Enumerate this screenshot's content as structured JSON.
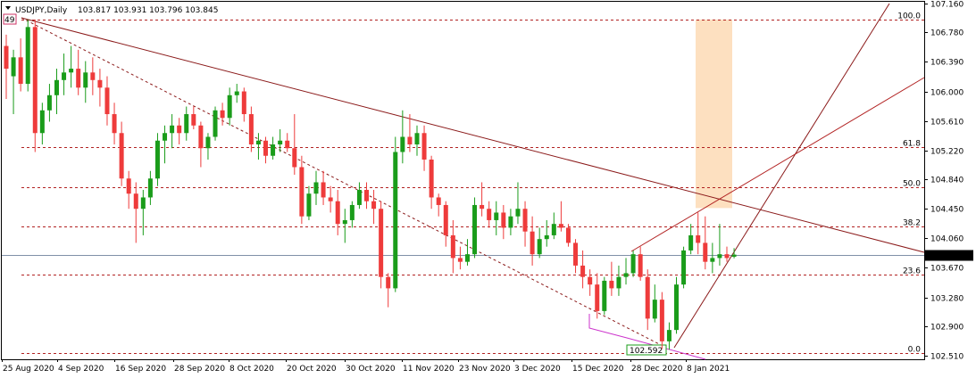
{
  "header": {
    "menu_icon": "triangle-down-icon",
    "symbol": "USDJPY,Daily",
    "ohlc": "103.817 103.931 103.796 103.845"
  },
  "marker": {
    "text": "49"
  },
  "current_price": "103.845",
  "low_label": "102.592",
  "colors": {
    "bull": "#1a9c1a",
    "bear": "#ee3b3b",
    "trend": "#8b1a1a",
    "fib": "#b22222",
    "zone": "#fde0c0",
    "price_line": "#8090a8",
    "lower_trend": "#cc33cc"
  },
  "chart_data": {
    "type": "candlestick",
    "y_ticks": [
      "107.160",
      "106.780",
      "106.390",
      "106.000",
      "105.610",
      "105.220",
      "104.840",
      "104.450",
      "104.060",
      "103.670",
      "103.280",
      "102.900",
      "102.510"
    ],
    "x_ticks": [
      "25 Aug 2020",
      "4 Sep 2020",
      "16 Sep 2020",
      "28 Sep 2020",
      "8 Oct 2020",
      "20 Oct 2020",
      "30 Oct 2020",
      "11 Nov 2020",
      "23 Nov 2020",
      "3 Dec 2020",
      "15 Dec 2020",
      "28 Dec 2020",
      "8 Jan 2021"
    ],
    "ylim": [
      102.51,
      107.16
    ],
    "fib_levels": [
      {
        "label": "100.0",
        "price": 106.95
      },
      {
        "label": "61.8",
        "price": 105.26
      },
      {
        "label": "50.0",
        "price": 104.74
      },
      {
        "label": "38.2",
        "price": 104.22
      },
      {
        "label": "23.6",
        "price": 103.58
      },
      {
        "label": "0.0",
        "price": 102.55
      }
    ],
    "candles": [
      {
        "o": 106.6,
        "h": 106.75,
        "l": 105.9,
        "c": 106.3
      },
      {
        "o": 106.2,
        "h": 106.55,
        "l": 105.7,
        "c": 106.45
      },
      {
        "o": 106.45,
        "h": 106.7,
        "l": 106.0,
        "c": 106.1
      },
      {
        "o": 106.1,
        "h": 106.95,
        "l": 106.0,
        "c": 106.85
      },
      {
        "o": 106.85,
        "h": 106.95,
        "l": 105.2,
        "c": 105.45
      },
      {
        "o": 105.45,
        "h": 105.85,
        "l": 105.3,
        "c": 105.75
      },
      {
        "o": 105.75,
        "h": 106.1,
        "l": 105.6,
        "c": 105.95
      },
      {
        "o": 105.95,
        "h": 106.3,
        "l": 105.7,
        "c": 106.15
      },
      {
        "o": 106.15,
        "h": 106.5,
        "l": 105.95,
        "c": 106.25
      },
      {
        "o": 106.25,
        "h": 106.6,
        "l": 106.05,
        "c": 106.3
      },
      {
        "o": 106.3,
        "h": 106.55,
        "l": 105.95,
        "c": 106.05
      },
      {
        "o": 106.05,
        "h": 106.4,
        "l": 105.85,
        "c": 106.25
      },
      {
        "o": 106.25,
        "h": 106.45,
        "l": 105.95,
        "c": 106.15
      },
      {
        "o": 106.15,
        "h": 106.3,
        "l": 105.8,
        "c": 106.05
      },
      {
        "o": 106.05,
        "h": 106.2,
        "l": 105.55,
        "c": 105.7
      },
      {
        "o": 105.7,
        "h": 105.85,
        "l": 105.3,
        "c": 105.45
      },
      {
        "o": 105.45,
        "h": 105.6,
        "l": 104.75,
        "c": 104.85
      },
      {
        "o": 104.85,
        "h": 104.95,
        "l": 104.45,
        "c": 104.65
      },
      {
        "o": 104.65,
        "h": 104.8,
        "l": 104.0,
        "c": 104.45
      },
      {
        "o": 104.45,
        "h": 104.7,
        "l": 104.1,
        "c": 104.6
      },
      {
        "o": 104.6,
        "h": 104.95,
        "l": 104.5,
        "c": 104.85
      },
      {
        "o": 104.85,
        "h": 105.45,
        "l": 104.75,
        "c": 105.35
      },
      {
        "o": 105.35,
        "h": 105.55,
        "l": 105.05,
        "c": 105.45
      },
      {
        "o": 105.45,
        "h": 105.7,
        "l": 105.25,
        "c": 105.55
      },
      {
        "o": 105.55,
        "h": 105.65,
        "l": 105.3,
        "c": 105.45
      },
      {
        "o": 105.45,
        "h": 105.8,
        "l": 105.35,
        "c": 105.7
      },
      {
        "o": 105.7,
        "h": 105.8,
        "l": 105.5,
        "c": 105.55
      },
      {
        "o": 105.55,
        "h": 105.6,
        "l": 105.0,
        "c": 105.25
      },
      {
        "o": 105.25,
        "h": 105.45,
        "l": 105.1,
        "c": 105.4
      },
      {
        "o": 105.4,
        "h": 105.8,
        "l": 105.35,
        "c": 105.75
      },
      {
        "o": 105.75,
        "h": 105.85,
        "l": 105.55,
        "c": 105.65
      },
      {
        "o": 105.65,
        "h": 106.05,
        "l": 105.55,
        "c": 105.95
      },
      {
        "o": 105.95,
        "h": 106.1,
        "l": 105.85,
        "c": 106.0
      },
      {
        "o": 106.0,
        "h": 106.05,
        "l": 105.6,
        "c": 105.7
      },
      {
        "o": 105.7,
        "h": 105.8,
        "l": 105.2,
        "c": 105.3
      },
      {
        "o": 105.3,
        "h": 105.45,
        "l": 105.1,
        "c": 105.35
      },
      {
        "o": 105.35,
        "h": 105.4,
        "l": 105.05,
        "c": 105.15
      },
      {
        "o": 105.15,
        "h": 105.4,
        "l": 105.1,
        "c": 105.3
      },
      {
        "o": 105.3,
        "h": 105.5,
        "l": 105.2,
        "c": 105.35
      },
      {
        "o": 105.35,
        "h": 105.45,
        "l": 105.2,
        "c": 105.25
      },
      {
        "o": 105.25,
        "h": 105.7,
        "l": 104.9,
        "c": 105.0
      },
      {
        "o": 105.0,
        "h": 105.15,
        "l": 104.25,
        "c": 104.35
      },
      {
        "o": 104.35,
        "h": 104.75,
        "l": 104.3,
        "c": 104.65
      },
      {
        "o": 104.65,
        "h": 104.95,
        "l": 104.5,
        "c": 104.8
      },
      {
        "o": 104.8,
        "h": 104.95,
        "l": 104.5,
        "c": 104.6
      },
      {
        "o": 104.6,
        "h": 104.75,
        "l": 104.4,
        "c": 104.55
      },
      {
        "o": 104.55,
        "h": 104.7,
        "l": 104.1,
        "c": 104.25
      },
      {
        "o": 104.25,
        "h": 104.45,
        "l": 104.0,
        "c": 104.3
      },
      {
        "o": 104.3,
        "h": 104.55,
        "l": 104.2,
        "c": 104.5
      },
      {
        "o": 104.5,
        "h": 104.8,
        "l": 104.45,
        "c": 104.7
      },
      {
        "o": 104.7,
        "h": 104.8,
        "l": 104.45,
        "c": 104.55
      },
      {
        "o": 104.55,
        "h": 104.7,
        "l": 104.25,
        "c": 104.45
      },
      {
        "o": 104.45,
        "h": 104.55,
        "l": 103.4,
        "c": 103.55
      },
      {
        "o": 103.55,
        "h": 103.6,
        "l": 103.15,
        "c": 103.4
      },
      {
        "o": 103.4,
        "h": 105.4,
        "l": 103.35,
        "c": 105.2
      },
      {
        "o": 105.2,
        "h": 105.75,
        "l": 105.05,
        "c": 105.4
      },
      {
        "o": 105.4,
        "h": 105.7,
        "l": 105.2,
        "c": 105.3
      },
      {
        "o": 105.3,
        "h": 105.55,
        "l": 105.15,
        "c": 105.45
      },
      {
        "o": 105.45,
        "h": 105.55,
        "l": 104.95,
        "c": 105.1
      },
      {
        "o": 105.1,
        "h": 105.15,
        "l": 104.45,
        "c": 104.6
      },
      {
        "o": 104.6,
        "h": 104.65,
        "l": 104.35,
        "c": 104.5
      },
      {
        "o": 104.5,
        "h": 104.55,
        "l": 103.95,
        "c": 104.1
      },
      {
        "o": 104.1,
        "h": 104.3,
        "l": 103.6,
        "c": 103.8
      },
      {
        "o": 103.8,
        "h": 103.95,
        "l": 103.65,
        "c": 103.75
      },
      {
        "o": 103.75,
        "h": 104.05,
        "l": 103.7,
        "c": 103.85
      },
      {
        "o": 103.85,
        "h": 104.6,
        "l": 103.8,
        "c": 104.5
      },
      {
        "o": 104.5,
        "h": 104.8,
        "l": 104.35,
        "c": 104.45
      },
      {
        "o": 104.45,
        "h": 104.55,
        "l": 104.2,
        "c": 104.3
      },
      {
        "o": 104.3,
        "h": 104.55,
        "l": 104.1,
        "c": 104.4
      },
      {
        "o": 104.4,
        "h": 104.5,
        "l": 104.05,
        "c": 104.2
      },
      {
        "o": 104.2,
        "h": 104.45,
        "l": 104.1,
        "c": 104.35
      },
      {
        "o": 104.35,
        "h": 104.8,
        "l": 104.25,
        "c": 104.45
      },
      {
        "o": 104.45,
        "h": 104.55,
        "l": 103.95,
        "c": 104.15
      },
      {
        "o": 104.15,
        "h": 104.35,
        "l": 103.7,
        "c": 103.85
      },
      {
        "o": 103.85,
        "h": 104.2,
        "l": 103.8,
        "c": 104.05
      },
      {
        "o": 104.05,
        "h": 104.3,
        "l": 103.95,
        "c": 104.1
      },
      {
        "o": 104.1,
        "h": 104.4,
        "l": 104.05,
        "c": 104.25
      },
      {
        "o": 104.25,
        "h": 104.55,
        "l": 104.15,
        "c": 104.2
      },
      {
        "o": 104.2,
        "h": 104.25,
        "l": 103.95,
        "c": 104.0
      },
      {
        "o": 104.0,
        "h": 104.05,
        "l": 103.6,
        "c": 103.7
      },
      {
        "o": 103.7,
        "h": 103.9,
        "l": 103.4,
        "c": 103.55
      },
      {
        "o": 103.55,
        "h": 103.65,
        "l": 103.3,
        "c": 103.45
      },
      {
        "o": 103.45,
        "h": 103.6,
        "l": 103.0,
        "c": 103.1
      },
      {
        "o": 103.1,
        "h": 103.55,
        "l": 103.05,
        "c": 103.5
      },
      {
        "o": 103.5,
        "h": 103.75,
        "l": 103.3,
        "c": 103.4
      },
      {
        "o": 103.4,
        "h": 103.7,
        "l": 103.3,
        "c": 103.55
      },
      {
        "o": 103.55,
        "h": 103.8,
        "l": 103.45,
        "c": 103.6
      },
      {
        "o": 103.6,
        "h": 103.9,
        "l": 103.55,
        "c": 103.85
      },
      {
        "o": 103.85,
        "h": 103.95,
        "l": 103.5,
        "c": 103.55
      },
      {
        "o": 103.55,
        "h": 103.65,
        "l": 102.85,
        "c": 103.0
      },
      {
        "o": 103.0,
        "h": 103.45,
        "l": 102.95,
        "c": 103.25
      },
      {
        "o": 103.25,
        "h": 103.35,
        "l": 102.6,
        "c": 102.7
      },
      {
        "o": 102.7,
        "h": 102.95,
        "l": 102.59,
        "c": 102.85
      },
      {
        "o": 102.85,
        "h": 103.55,
        "l": 102.8,
        "c": 103.45
      },
      {
        "o": 103.45,
        "h": 103.95,
        "l": 103.4,
        "c": 103.9
      },
      {
        "o": 103.9,
        "h": 104.25,
        "l": 103.85,
        "c": 104.1
      },
      {
        "o": 104.1,
        "h": 104.4,
        "l": 103.85,
        "c": 104.0
      },
      {
        "o": 104.0,
        "h": 104.35,
        "l": 103.65,
        "c": 103.75
      },
      {
        "o": 103.75,
        "h": 104.0,
        "l": 103.6,
        "c": 103.8
      },
      {
        "o": 103.8,
        "h": 104.25,
        "l": 103.7,
        "c": 103.85
      },
      {
        "o": 103.85,
        "h": 103.95,
        "l": 103.75,
        "c": 103.8
      },
      {
        "o": 103.817,
        "h": 103.931,
        "l": 103.796,
        "c": 103.845
      }
    ]
  }
}
